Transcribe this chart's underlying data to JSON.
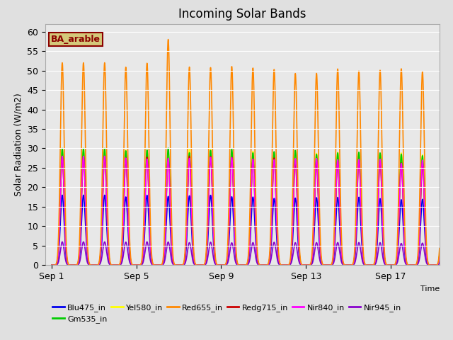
{
  "title": "Incoming Solar Bands",
  "xlabel": "Time",
  "ylabel": "Solar Radiation (W/m2)",
  "background_color": "#e0e0e0",
  "plot_bg_color": "#e8e8e8",
  "annotation_text": "BA_arable",
  "annotation_bg": "#d4c87a",
  "annotation_border": "#8b0000",
  "ylim": [
    0,
    62
  ],
  "yticks": [
    0,
    5,
    10,
    15,
    20,
    25,
    30,
    35,
    40,
    45,
    50,
    55,
    60
  ],
  "series": [
    {
      "label": "Blu475_in",
      "color": "#0000ee",
      "lw": 1.2
    },
    {
      "label": "Gm535_in",
      "color": "#00cc00",
      "lw": 1.2
    },
    {
      "label": "Yel580_in",
      "color": "#ffff00",
      "lw": 1.2
    },
    {
      "label": "Red655_in",
      "color": "#ff8800",
      "lw": 1.2
    },
    {
      "label": "Redg715_in",
      "color": "#cc0000",
      "lw": 1.2
    },
    {
      "label": "Nir840_in",
      "color": "#ff00ff",
      "lw": 1.2
    },
    {
      "label": "Nir945_in",
      "color": "#8800cc",
      "lw": 1.2
    }
  ],
  "n_days": 19,
  "day_labels": [
    "Sep 1",
    "Sep 5",
    "Sep 9",
    "Sep 13",
    "Sep 17"
  ],
  "day_label_day_indices": [
    0,
    4,
    8,
    12,
    16
  ],
  "peak_values": {
    "Blu475_in": 18,
    "Gm535_in": 30,
    "Yel580_in": 30,
    "Red655_in": 52,
    "Redg715_in": 28,
    "Nir840_in": 28,
    "Nir945_in": 6
  },
  "sigma": 0.09,
  "special_spike_day": 5,
  "special_spike_value": 58
}
